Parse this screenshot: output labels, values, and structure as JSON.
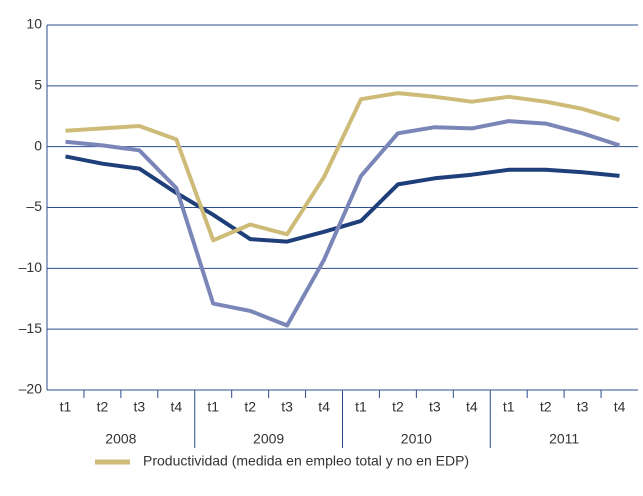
{
  "chart_data": {
    "type": "line",
    "categories": [
      "t1",
      "t2",
      "t3",
      "t4",
      "t1",
      "t2",
      "t3",
      "t4",
      "t1",
      "t2",
      "t3",
      "t4",
      "t1",
      "t2",
      "t3",
      "t4"
    ],
    "groups": [
      "2008",
      "2009",
      "2010",
      "2011"
    ],
    "series": [
      {
        "name": "Productividad (medida en empleo total y no en EDP)",
        "color": "#cdbb77",
        "values": [
          1.3,
          1.5,
          1.7,
          0.6,
          -7.7,
          -6.4,
          -7.2,
          -2.5,
          3.9,
          4.4,
          4.1,
          3.7,
          4.1,
          3.7,
          3.1,
          2.2
        ]
      },
      {
        "color": "#7b86b8",
        "values": [
          0.4,
          0.1,
          -0.3,
          -3.4,
          -12.9,
          -13.5,
          -14.7,
          -9.3,
          -2.4,
          1.1,
          1.6,
          1.5,
          2.1,
          1.9,
          1.1,
          0.1
        ]
      },
      {
        "color": "#1f3f7a",
        "values": [
          -0.8,
          -1.4,
          -1.8,
          -3.8,
          -5.6,
          -7.6,
          -7.8,
          -7.0,
          -6.1,
          -3.1,
          -2.6,
          -2.3,
          -1.9,
          -1.9,
          -2.1,
          -2.4
        ]
      }
    ],
    "ylim": [
      -20,
      10
    ],
    "yticks": [
      {
        "value": -20,
        "label": "–20"
      },
      {
        "value": -15,
        "label": "–15"
      },
      {
        "value": -10,
        "label": "–10"
      },
      {
        "value": -5,
        "label": "–5"
      },
      0,
      5,
      10
    ],
    "grid": true
  }
}
